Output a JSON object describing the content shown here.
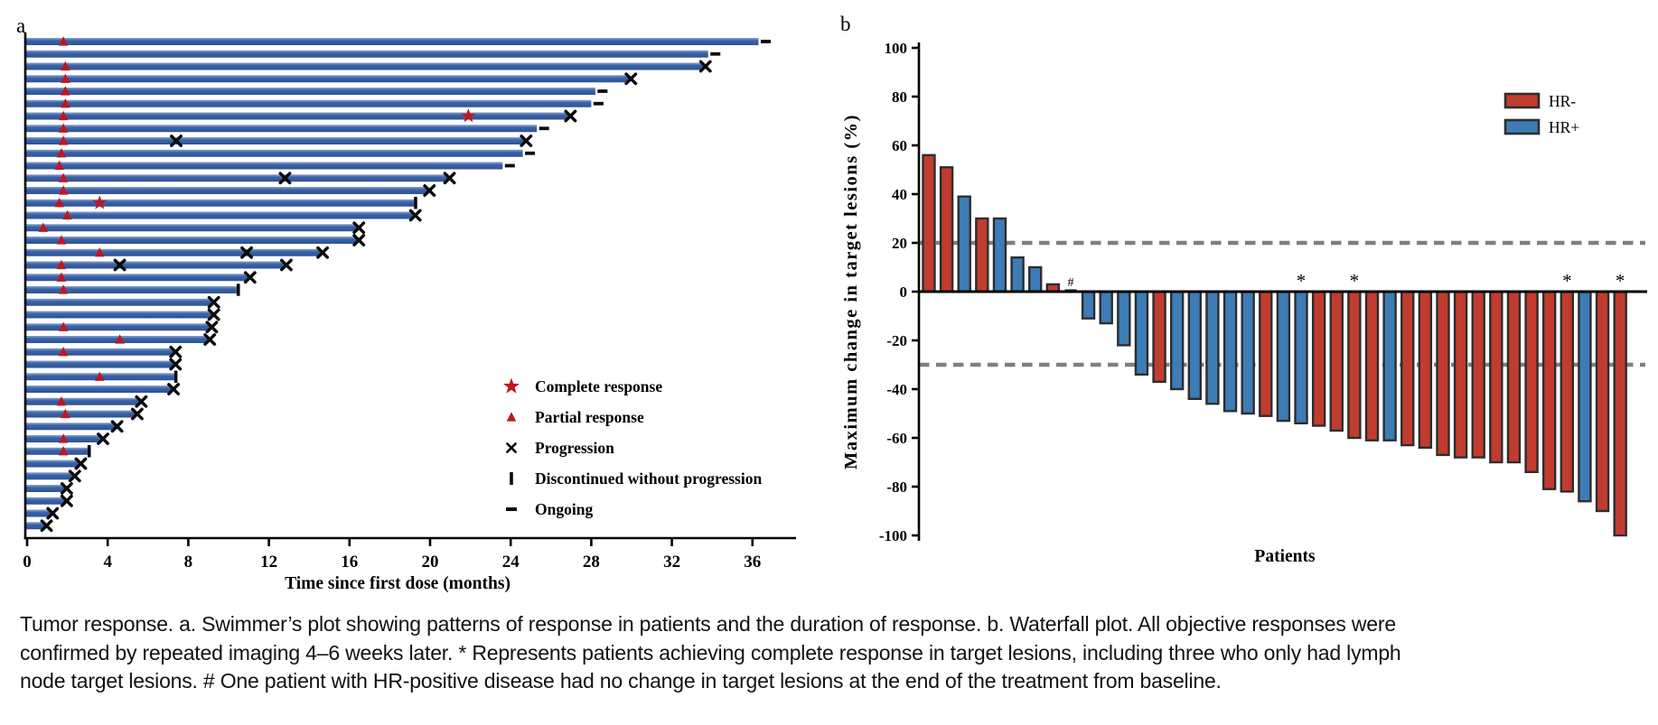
{
  "figure": {
    "panel_a_letter": "a",
    "panel_b_letter": "b",
    "caption_lines": [
      "Tumor response. a. Swimmer’s plot showing patterns of response in patients and the duration of response. b. Waterfall plot. All objective responses were",
      "confirmed by repeated imaging 4–6 weeks later. * Represents patients achieving complete response in target lesions, including three who only had lymph",
      "node target lesions. # One patient with HR-positive disease had no change in target lesions at the end of the treatment from baseline."
    ]
  },
  "colors": {
    "swimmer_bar": "#3a63a8",
    "swimmer_bar_light": "#8ba4cd",
    "swimmer_bar_dark": "#2d5394",
    "marker_red": "#bf1722",
    "hr_neg": "#c13c2e",
    "hr_pos": "#3d7cb5",
    "bar_stroke": "#2d2d2d",
    "dashed_line": "#7f7f7f",
    "axis": "#000000"
  },
  "chart_data": [
    {
      "type": "swimmer",
      "xlabel": "Time since first dose (months)",
      "x_ticks": [
        "0",
        "4",
        "8",
        "12",
        "16",
        "20",
        "24",
        "28",
        "32",
        "36"
      ],
      "x_tick_values": [
        0,
        4,
        8,
        12,
        16,
        20,
        24,
        28,
        32,
        36
      ],
      "xlim": [
        0,
        38
      ],
      "legend": [
        {
          "symbol": "star",
          "label": "Complete response"
        },
        {
          "symbol": "triangle",
          "label": "Partial response"
        },
        {
          "symbol": "cross",
          "label": "Progression"
        },
        {
          "symbol": "bar",
          "label": "Discontinued without progression"
        },
        {
          "symbol": "dash",
          "label": "Ongoing"
        }
      ],
      "patients": [
        {
          "duration": 36.3,
          "end": "ongoing",
          "events": [
            [
              "partial",
              1.8
            ]
          ]
        },
        {
          "duration": 33.8,
          "end": "ongoing",
          "events": []
        },
        {
          "duration": 33.6,
          "end": "progression",
          "events": [
            [
              "partial",
              1.9
            ]
          ]
        },
        {
          "duration": 29.9,
          "end": "progression",
          "events": [
            [
              "partial",
              1.9
            ]
          ]
        },
        {
          "duration": 28.2,
          "end": "ongoing",
          "events": [
            [
              "partial",
              1.9
            ]
          ]
        },
        {
          "duration": 28.0,
          "end": "ongoing",
          "events": [
            [
              "partial",
              1.9
            ]
          ]
        },
        {
          "duration": 26.9,
          "end": "progression",
          "events": [
            [
              "partial",
              1.8
            ],
            [
              "complete",
              21.9
            ]
          ]
        },
        {
          "duration": 25.3,
          "end": "ongoing",
          "events": [
            [
              "partial",
              1.8
            ]
          ]
        },
        {
          "duration": 24.7,
          "end": "progression",
          "events": [
            [
              "partial",
              1.8
            ],
            [
              "progression",
              7.4
            ]
          ]
        },
        {
          "duration": 24.6,
          "end": "ongoing",
          "events": [
            [
              "partial",
              1.7
            ]
          ]
        },
        {
          "duration": 23.6,
          "end": "ongoing",
          "events": [
            [
              "partial",
              1.6
            ]
          ]
        },
        {
          "duration": 20.9,
          "end": "progression",
          "events": [
            [
              "partial",
              1.8
            ],
            [
              "progression",
              12.8
            ]
          ]
        },
        {
          "duration": 19.9,
          "end": "progression",
          "events": [
            [
              "partial",
              1.8
            ]
          ]
        },
        {
          "duration": 19.2,
          "end": "discontinued",
          "events": [
            [
              "partial",
              1.6
            ],
            [
              "complete",
              3.6
            ]
          ]
        },
        {
          "duration": 19.2,
          "end": "progression",
          "events": [
            [
              "partial",
              2.0
            ]
          ]
        },
        {
          "duration": 16.4,
          "end": "progression",
          "events": [
            [
              "partial",
              0.8
            ]
          ]
        },
        {
          "duration": 16.4,
          "end": "progression",
          "events": [
            [
              "partial",
              1.7
            ]
          ]
        },
        {
          "duration": 14.6,
          "end": "progression",
          "events": [
            [
              "partial",
              3.6
            ],
            [
              "progression",
              10.9
            ]
          ]
        },
        {
          "duration": 12.8,
          "end": "progression",
          "events": [
            [
              "partial",
              1.7
            ],
            [
              "progression",
              4.6
            ]
          ]
        },
        {
          "duration": 11.0,
          "end": "progression",
          "events": [
            [
              "partial",
              1.7
            ]
          ]
        },
        {
          "duration": 10.4,
          "end": "discontinued",
          "events": [
            [
              "partial",
              1.8
            ]
          ]
        },
        {
          "duration": 9.2,
          "end": "progression",
          "events": []
        },
        {
          "duration": 9.2,
          "end": "progression",
          "events": []
        },
        {
          "duration": 9.1,
          "end": "progression",
          "events": [
            [
              "partial",
              1.8
            ]
          ]
        },
        {
          "duration": 9.0,
          "end": "progression",
          "events": [
            [
              "partial",
              4.6
            ]
          ]
        },
        {
          "duration": 7.3,
          "end": "progression",
          "events": [
            [
              "partial",
              1.8
            ]
          ]
        },
        {
          "duration": 7.3,
          "end": "progression",
          "events": []
        },
        {
          "duration": 7.3,
          "end": "discontinued",
          "events": [
            [
              "partial",
              3.6
            ]
          ]
        },
        {
          "duration": 7.2,
          "end": "progression",
          "events": []
        },
        {
          "duration": 5.6,
          "end": "progression",
          "events": [
            [
              "partial",
              1.7
            ]
          ]
        },
        {
          "duration": 5.4,
          "end": "progression",
          "events": [
            [
              "partial",
              1.9
            ]
          ]
        },
        {
          "duration": 4.4,
          "end": "progression",
          "events": []
        },
        {
          "duration": 3.7,
          "end": "progression",
          "events": [
            [
              "partial",
              1.8
            ]
          ]
        },
        {
          "duration": 3.0,
          "end": "discontinued",
          "events": [
            [
              "partial",
              1.8
            ]
          ]
        },
        {
          "duration": 2.6,
          "end": "progression",
          "events": []
        },
        {
          "duration": 2.3,
          "end": "progression",
          "events": []
        },
        {
          "duration": 1.9,
          "end": "progression",
          "events": []
        },
        {
          "duration": 1.9,
          "end": "progression",
          "events": []
        },
        {
          "duration": 1.2,
          "end": "progression",
          "events": []
        },
        {
          "duration": 0.9,
          "end": "progression",
          "events": []
        }
      ]
    },
    {
      "type": "waterfall",
      "ylabel": "Maximum change in target lesions (%)",
      "xlabel": "Patients",
      "y_ticks": [
        "100",
        "80",
        "60",
        "40",
        "20",
        "0",
        "-20",
        "-40",
        "-60",
        "-80",
        "-100"
      ],
      "y_tick_values": [
        100,
        80,
        60,
        40,
        20,
        0,
        -20,
        -40,
        -60,
        -80,
        -100
      ],
      "ylim": [
        -100,
        100
      ],
      "reference_lines": [
        20,
        -30
      ],
      "legend": [
        {
          "label": "HR-",
          "group": "HR-"
        },
        {
          "label": "HR+",
          "group": "HR+"
        }
      ],
      "bars": [
        {
          "group": "HR-",
          "value": 56
        },
        {
          "group": "HR-",
          "value": 51
        },
        {
          "group": "HR+",
          "value": 39
        },
        {
          "group": "HR-",
          "value": 30
        },
        {
          "group": "HR+",
          "value": 30
        },
        {
          "group": "HR+",
          "value": 14
        },
        {
          "group": "HR+",
          "value": 10
        },
        {
          "group": "HR-",
          "value": 3
        },
        {
          "group": "HR+",
          "value": 0,
          "marker": "#"
        },
        {
          "group": "HR+",
          "value": -11
        },
        {
          "group": "HR+",
          "value": -13
        },
        {
          "group": "HR+",
          "value": -22
        },
        {
          "group": "HR+",
          "value": -34
        },
        {
          "group": "HR-",
          "value": -37
        },
        {
          "group": "HR+",
          "value": -40
        },
        {
          "group": "HR+",
          "value": -44
        },
        {
          "group": "HR+",
          "value": -46
        },
        {
          "group": "HR+",
          "value": -49
        },
        {
          "group": "HR+",
          "value": -50
        },
        {
          "group": "HR-",
          "value": -51
        },
        {
          "group": "HR+",
          "value": -53
        },
        {
          "group": "HR+",
          "value": -54,
          "marker": "*"
        },
        {
          "group": "HR-",
          "value": -55
        },
        {
          "group": "HR-",
          "value": -57
        },
        {
          "group": "HR-",
          "value": -60,
          "marker": "*"
        },
        {
          "group": "HR-",
          "value": -61
        },
        {
          "group": "HR+",
          "value": -61
        },
        {
          "group": "HR-",
          "value": -63
        },
        {
          "group": "HR-",
          "value": -64
        },
        {
          "group": "HR-",
          "value": -67
        },
        {
          "group": "HR-",
          "value": -68
        },
        {
          "group": "HR-",
          "value": -68
        },
        {
          "group": "HR-",
          "value": -70
        },
        {
          "group": "HR-",
          "value": -70
        },
        {
          "group": "HR-",
          "value": -74
        },
        {
          "group": "HR-",
          "value": -81
        },
        {
          "group": "HR-",
          "value": -82,
          "marker": "*"
        },
        {
          "group": "HR+",
          "value": -86
        },
        {
          "group": "HR-",
          "value": -90
        },
        {
          "group": "HR-",
          "value": -100,
          "marker": "*"
        }
      ]
    }
  ]
}
